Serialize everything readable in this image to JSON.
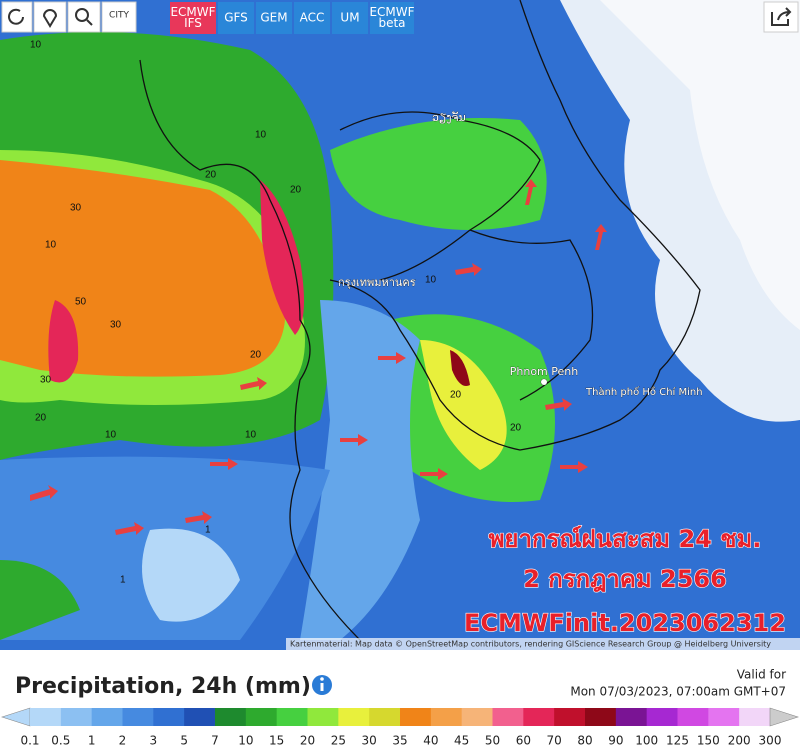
{
  "toolbar": {
    "city": "CITY",
    "models": [
      "ECMWF IFS",
      "GFS",
      "GEM",
      "ACC",
      "UM",
      "ECMWF beta"
    ]
  },
  "map": {
    "places": [
      "กรุงเทพมหานคร",
      "Phnom Penh",
      "Thành phố Hồ Chí Minh",
      "ວຽງຈັນ"
    ],
    "contour_labels": [
      "10",
      "20",
      "30",
      "50",
      "30",
      "20",
      "10",
      "20",
      "30",
      "10",
      "20",
      "10",
      "10",
      "20",
      "1",
      "1",
      "10",
      "20"
    ],
    "overlay": [
      "พยากรณ์ฝนสะสม 24 ชม.",
      "2 กรกฎาคม 2566",
      "ECMWFinit.2023062312"
    ],
    "attribution": "Kartenmaterial: Map data © OpenStreetMap contributors, rendering GIScience Research Group @ Heidelberg University"
  },
  "legend": {
    "title": "Precipitation, 24h (mm)",
    "valid_label": "Valid for",
    "valid_time": "Mon 07/03/2023, 07:00am GMT+07",
    "items": [
      {
        "label": "0.1",
        "color": "#b4d8f8"
      },
      {
        "label": "0.5",
        "color": "#8cc0f2"
      },
      {
        "label": "1",
        "color": "#64a6ea"
      },
      {
        "label": "2",
        "color": "#468ae0"
      },
      {
        "label": "3",
        "color": "#3070d2"
      },
      {
        "label": "5",
        "color": "#2050b4"
      },
      {
        "label": "7",
        "color": "#1e8a2e"
      },
      {
        "label": "10",
        "color": "#2eaa2e"
      },
      {
        "label": "15",
        "color": "#46d040"
      },
      {
        "label": "20",
        "color": "#90e83c"
      },
      {
        "label": "25",
        "color": "#e8f03c"
      },
      {
        "label": "30",
        "color": "#d6d82e"
      },
      {
        "label": "35",
        "color": "#f08418"
      },
      {
        "label": "40",
        "color": "#f4a048"
      },
      {
        "label": "45",
        "color": "#f6b478"
      },
      {
        "label": "50",
        "color": "#f2608e"
      },
      {
        "label": "60",
        "color": "#e42658"
      },
      {
        "label": "70",
        "color": "#c0102c"
      },
      {
        "label": "80",
        "color": "#8e0818"
      },
      {
        "label": "90",
        "color": "#7a1494"
      },
      {
        "label": "100",
        "color": "#a628d2"
      },
      {
        "label": "125",
        "color": "#d048e2"
      },
      {
        "label": "150",
        "color": "#e474f0"
      },
      {
        "label": "200",
        "color": "#f2d6f8"
      },
      {
        "label": "300",
        "color": "#cccccc"
      }
    ]
  }
}
